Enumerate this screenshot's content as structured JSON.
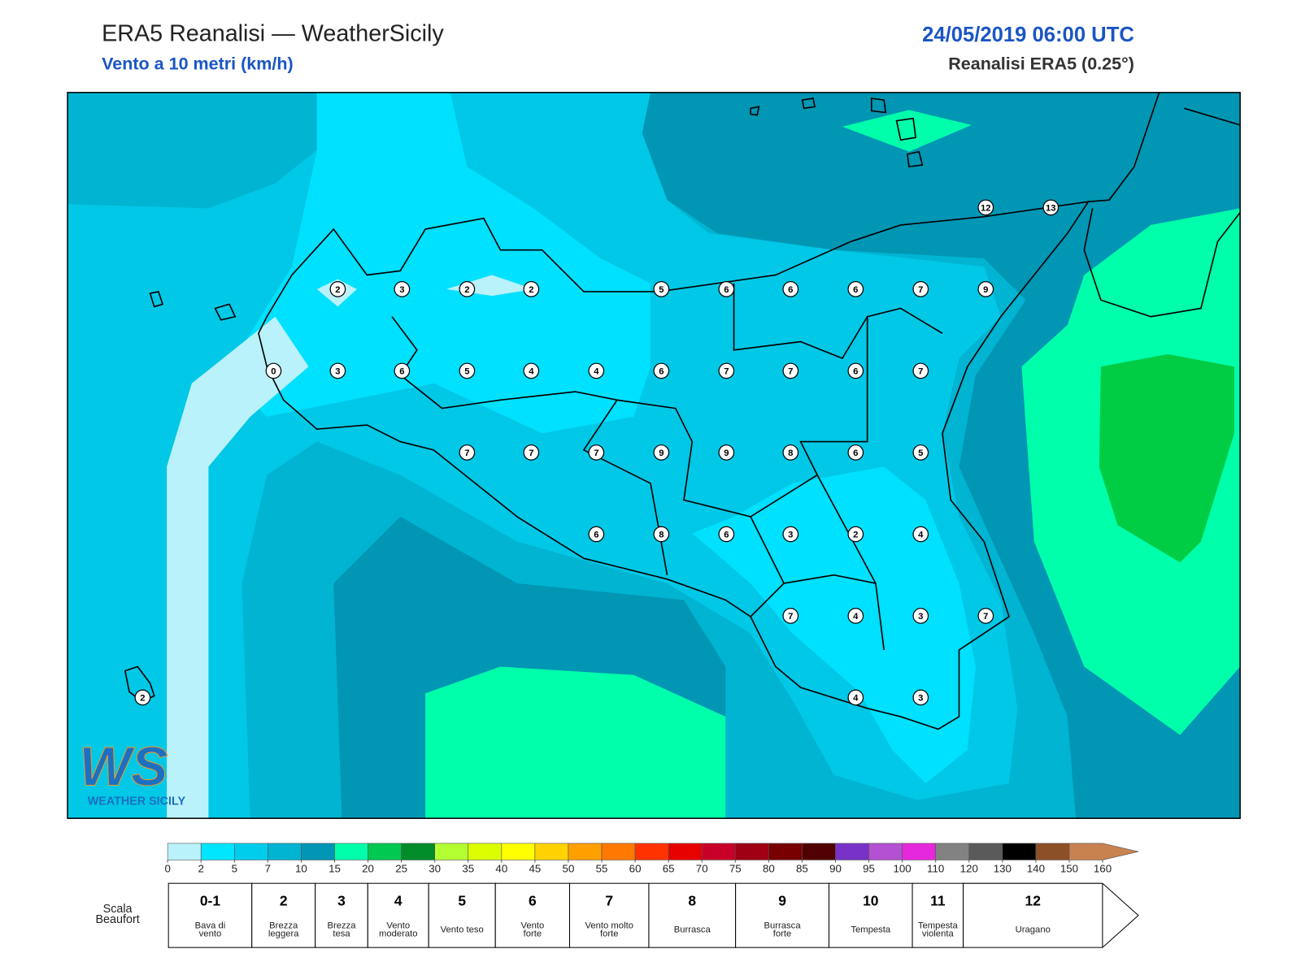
{
  "header": {
    "title": "ERA5 Reanalisi — WeatherSicily",
    "subtitle": "Vento a 10 metri (km/h)",
    "date": "24/05/2019 06:00 UTC",
    "source": "Reanalisi ERA5 (0.25°)"
  },
  "logo": {
    "mark": "WS",
    "name": "WEATHER SICILY"
  },
  "stations": {
    "values": [
      2,
      3,
      2,
      2,
      5,
      6,
      6,
      6,
      7,
      9,
      0,
      3,
      6,
      5,
      4,
      4,
      6,
      7,
      7,
      6,
      7,
      7,
      7,
      7,
      9,
      9,
      8,
      6,
      5,
      6,
      8,
      6,
      3,
      2,
      4,
      7,
      4,
      3,
      7,
      4,
      3,
      12,
      13,
      2
    ]
  },
  "colorbar": {
    "ticks": [
      0,
      2,
      5,
      7,
      10,
      15,
      20,
      25,
      30,
      35,
      40,
      45,
      50,
      55,
      60,
      65,
      70,
      75,
      80,
      85,
      90,
      95,
      100,
      110,
      120,
      130,
      140,
      150,
      160
    ],
    "colors": [
      "#b9f2fb",
      "#00e6ff",
      "#00cdeb",
      "#00b4d2",
      "#0096b4",
      "#00ffaa",
      "#00c850",
      "#008c28",
      "#b4ff32",
      "#dcff00",
      "#ffff00",
      "#ffd200",
      "#ffa000",
      "#ff7800",
      "#ff3200",
      "#e60000",
      "#c80028",
      "#a00014",
      "#780000",
      "#500000",
      "#7832c8",
      "#b450d2",
      "#e628dc",
      "#828282",
      "#5a5a5a",
      "#000000",
      "#8c5028",
      "#c88250"
    ]
  },
  "beaufort": {
    "label": [
      "Scala",
      "Beaufort"
    ],
    "forces": [
      {
        "force": "0-1",
        "lines": [
          "Bava di",
          "vento"
        ]
      },
      {
        "force": "2",
        "lines": [
          "Brezza",
          "leggera"
        ]
      },
      {
        "force": "3",
        "lines": [
          "Brezza",
          "tesa"
        ]
      },
      {
        "force": "4",
        "lines": [
          "Vento",
          "moderato"
        ]
      },
      {
        "force": "5",
        "lines": [
          "Vento teso"
        ]
      },
      {
        "force": "6",
        "lines": [
          "Vento",
          "forte"
        ]
      },
      {
        "force": "7",
        "lines": [
          "Vento molto",
          "forte"
        ]
      },
      {
        "force": "8",
        "lines": [
          "Burrasca"
        ]
      },
      {
        "force": "9",
        "lines": [
          "Burrasca",
          "forte"
        ]
      },
      {
        "force": "10",
        "lines": [
          "Tempesta"
        ]
      },
      {
        "force": "11",
        "lines": [
          "Tempesta",
          "violenta"
        ]
      },
      {
        "force": "12",
        "lines": [
          "Uragano"
        ]
      }
    ]
  }
}
